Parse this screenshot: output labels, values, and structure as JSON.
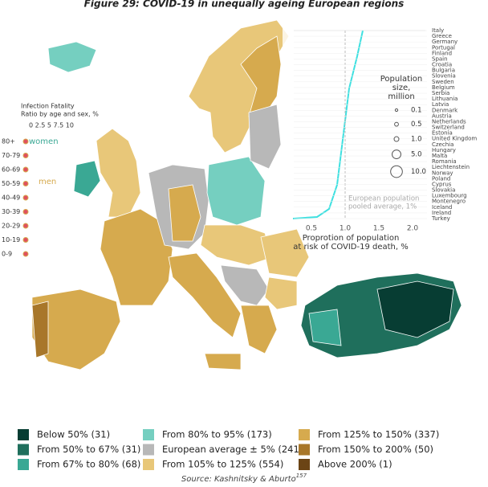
{
  "header": {
    "title": "Figure 29: COVID-19 in unequally ageing European regions"
  },
  "ifr_legend": {
    "title": [
      "Infection Fatality",
      "Ratio by age and sex, %"
    ],
    "ticks": "0  2.5  5  7.5  10",
    "women": "women",
    "men": "men",
    "ages": [
      "80+",
      "70-79",
      "60-69",
      "50-59",
      "40-49",
      "30-39",
      "20-29",
      "10-19",
      "0-9"
    ]
  },
  "inset": {
    "countries": [
      "Italy",
      "Greece",
      "Germany",
      "Portugal",
      "Finland",
      "Spain",
      "Croatia",
      "Bulgaria",
      "Slovenia",
      "Sweden",
      "Belgium",
      "Serbia",
      "Lithuania",
      "Latvia",
      "Denmark",
      "Austria",
      "Netherlands",
      "Switzerland",
      "Estonia",
      "United Kingdom",
      "Czechia",
      "Hungary",
      "Malta",
      "Romania",
      "Liechtenstein",
      "Norway",
      "Poland",
      "Cyprus",
      "Slovakia",
      "Luxembourg",
      "Montenegro",
      "Iceland",
      "Ireland",
      "Turkey"
    ],
    "x_ticks": [
      "0.5",
      "1.0",
      "1.5",
      "2.0"
    ],
    "x_label": [
      "Proprotion of population",
      "at risk of COVID-19 death, %"
    ],
    "average_note": [
      "European population",
      "pooled average, 1%"
    ],
    "size_title": [
      "Population",
      "size,",
      "million"
    ],
    "sizes": [
      {
        "value": 0.1,
        "label": "0.1"
      },
      {
        "value": 0.5,
        "label": "0.5"
      },
      {
        "value": 1,
        "label": "1.0"
      },
      {
        "value": 5,
        "label": "5.0"
      },
      {
        "value": 10,
        "label": "10.0"
      }
    ]
  },
  "legend": {
    "items": [
      {
        "label": "Below 50% (31)",
        "color": "#073d33"
      },
      {
        "label": "From 50% to 67% (31)",
        "color": "#1f6f5c"
      },
      {
        "label": "From 67% to 80% (68)",
        "color": "#3aa894"
      },
      {
        "label": "From 80% to 95% (173)",
        "color": "#75cfc0"
      },
      {
        "label": "European average ± 5% (241)",
        "color": "#b8b8b8"
      },
      {
        "label": "From 105% to 125% (554)",
        "color": "#e8c779"
      },
      {
        "label": "From 125% to 150% (337)",
        "color": "#d6aa4e"
      },
      {
        "label": "From 150% to 200% (50)",
        "color": "#a8772a"
      },
      {
        "label": "Above 200% (1)",
        "color": "#6b4415"
      }
    ]
  },
  "source": {
    "text": "Source: Kashnitsky & Aburto",
    "ref": "157"
  }
}
